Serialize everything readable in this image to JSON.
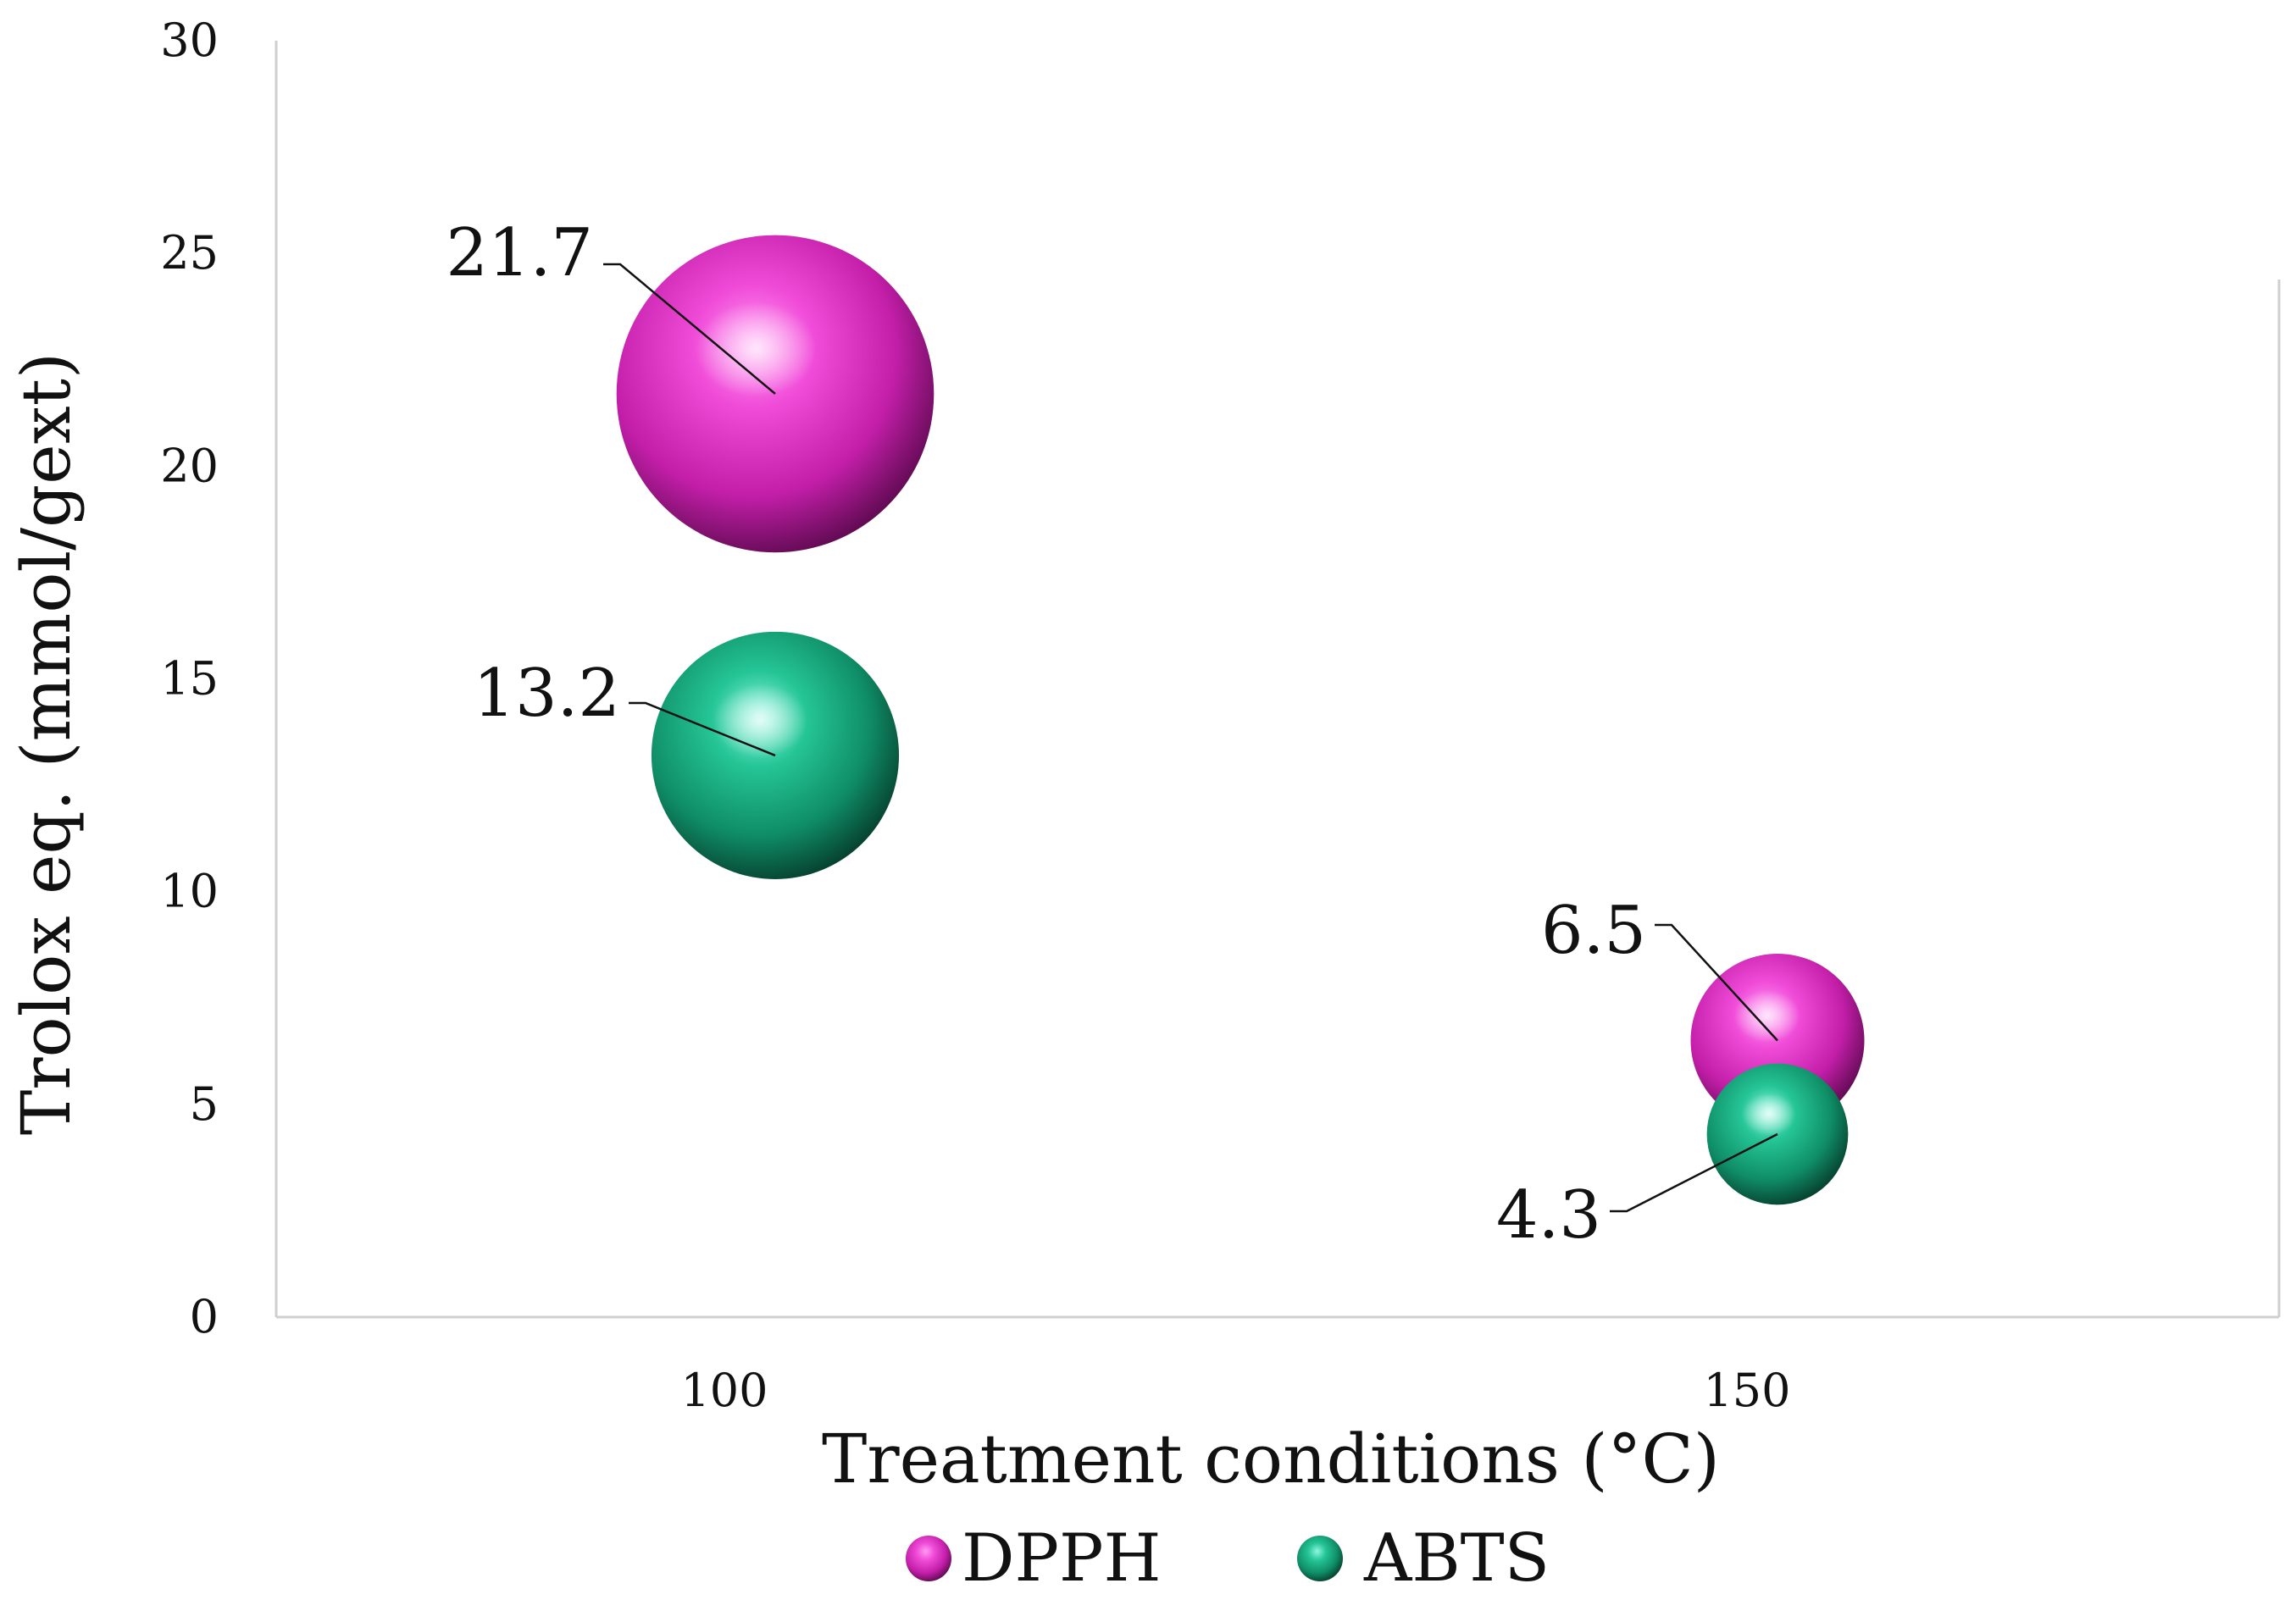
{
  "chart_data": {
    "type": "bubble",
    "xlabel": "Treatment conditions (°C)",
    "ylabel": "Trolox eq. (mmol/gext)",
    "ylim": [
      0,
      30
    ],
    "yticks": [
      0,
      5,
      10,
      15,
      20,
      25,
      30
    ],
    "categories": [
      "100",
      "150"
    ],
    "grid": false,
    "legend_position": "bottom",
    "series": [
      {
        "name": "DPPH",
        "color": "#e83bd0",
        "values": [
          21.7,
          6.5
        ],
        "labels": [
          "21.7",
          "6.5"
        ]
      },
      {
        "name": "ABTS",
        "color": "#1fb58a",
        "values": [
          13.2,
          4.3
        ],
        "labels": [
          "13.2",
          "4.3"
        ]
      }
    ]
  }
}
